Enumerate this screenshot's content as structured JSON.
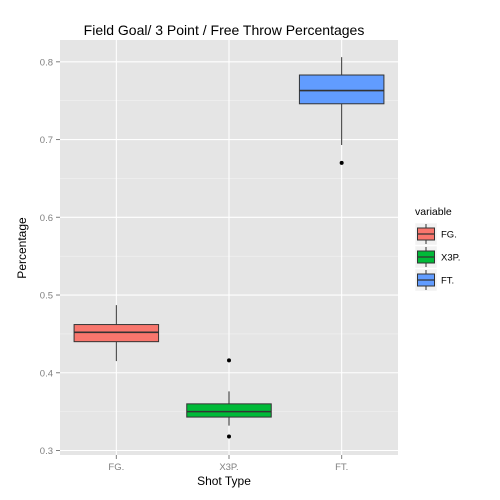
{
  "chart_data": {
    "type": "boxplot",
    "title": "Field Goal/ 3 Point / Free Throw Percentages",
    "xlabel": "Shot Type",
    "ylabel": "Percentage",
    "categories": [
      "FG.",
      "X3P.",
      "FT."
    ],
    "ylim": [
      0.3,
      0.8
    ],
    "yticks": [
      0.3,
      0.4,
      0.5,
      0.6,
      0.7,
      0.8
    ],
    "ytick_labels": [
      "0.3",
      "0.4",
      "0.5",
      "0.6",
      "0.7",
      "0.8"
    ],
    "grid": true,
    "legend": {
      "title": "variable",
      "position": "right",
      "entries": [
        "FG.",
        "X3P.",
        "FT."
      ]
    },
    "series": [
      {
        "category": "FG.",
        "color": "#F8766D",
        "whisker_low": 0.415,
        "q1": 0.44,
        "median": 0.452,
        "q3": 0.462,
        "whisker_high": 0.487,
        "outliers": []
      },
      {
        "category": "X3P.",
        "color": "#00BA38",
        "whisker_low": 0.332,
        "q1": 0.343,
        "median": 0.35,
        "q3": 0.36,
        "whisker_high": 0.376,
        "outliers": [
          0.416,
          0.318
        ]
      },
      {
        "category": "FT.",
        "color": "#619CFF",
        "whisker_low": 0.693,
        "q1": 0.746,
        "median": 0.763,
        "q3": 0.783,
        "whisker_high": 0.806,
        "outliers": [
          0.67
        ]
      }
    ]
  }
}
